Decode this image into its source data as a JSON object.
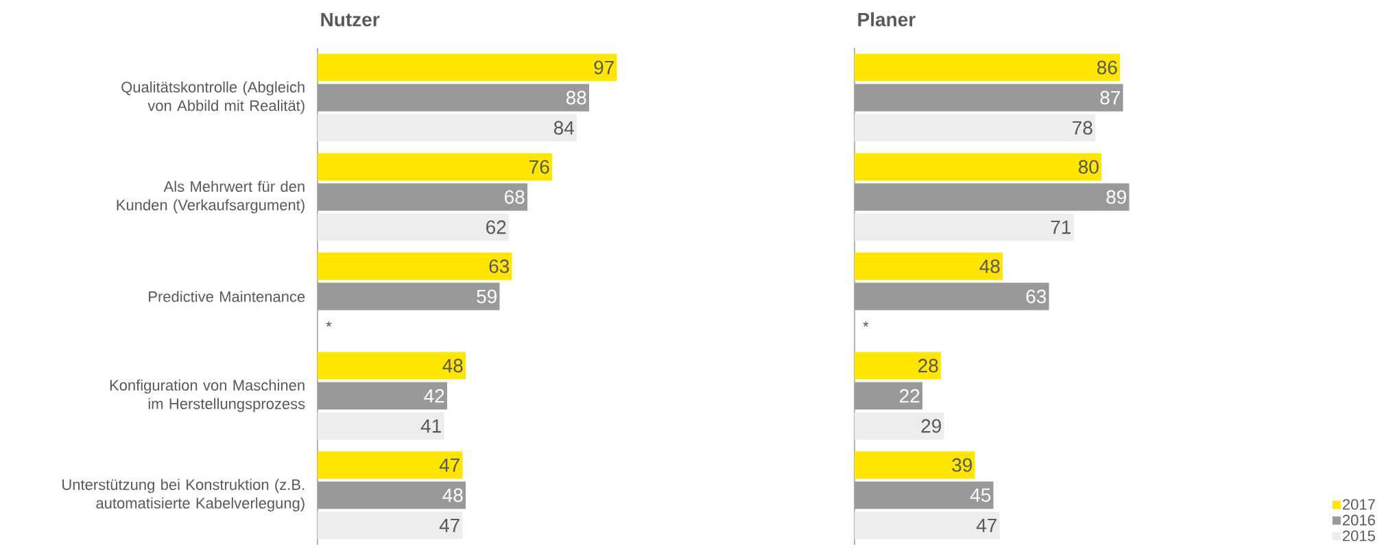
{
  "chart_data": [
    {
      "type": "bar",
      "orientation": "horizontal",
      "title": "Nutzer",
      "tick_labels": "y",
      "data_labels": true,
      "categories": [
        "Qualitätskontrolle (Abgleich von Abbild mit Realität)",
        "Als Mehrwert für den Kunden (Verkaufsargument)",
        "Predictive Maintenance",
        "Konfiguration von Maschinen im Herstellungsprozess",
        "Unterstützung bei Konstruktion (z.B. automatisierte Kabelverlegung)"
      ],
      "series": [
        {
          "color": "#ffe600",
          "values": [
            97,
            76,
            63,
            48,
            47
          ]
        },
        {
          "color": "#999999",
          "values": [
            88,
            68,
            59,
            42,
            48
          ]
        },
        {
          "color": "#ededed",
          "values": [
            84,
            62,
            null,
            41,
            47
          ]
        }
      ],
      "annotations": [
        {
          "text": "*",
          "x": 0,
          "y": "Predictive Maintenance"
        }
      ]
    },
    {
      "type": "bar",
      "orientation": "horizontal",
      "title": "Planer",
      "tick_labels": false,
      "data_labels": true,
      "legend": "bottom right",
      "categories": [
        "Qualitätskontrolle (Abgleich von Abbild mit Realität)",
        "Als Mehrwert für den Kunden (Verkaufsargument)",
        "Predictive Maintenance",
        "Konfiguration von Maschinen im Herstellungsprozess",
        "Unterstützung bei Konstruktion (z.B. automatisierte Kabelverlegung)"
      ],
      "series": [
        {
          "name": "2017",
          "color": "#ffe600",
          "values": [
            86,
            80,
            48,
            28,
            39
          ]
        },
        {
          "name": "2016",
          "color": "#999999",
          "values": [
            87,
            89,
            63,
            22,
            45
          ]
        },
        {
          "name": "2015",
          "color": "#ededed",
          "values": [
            78,
            71,
            null,
            29,
            47
          ]
        }
      ],
      "annotations": [
        {
          "text": "*",
          "x": 0,
          "y": "Predictive Maintenance"
        }
      ]
    }
  ]
}
